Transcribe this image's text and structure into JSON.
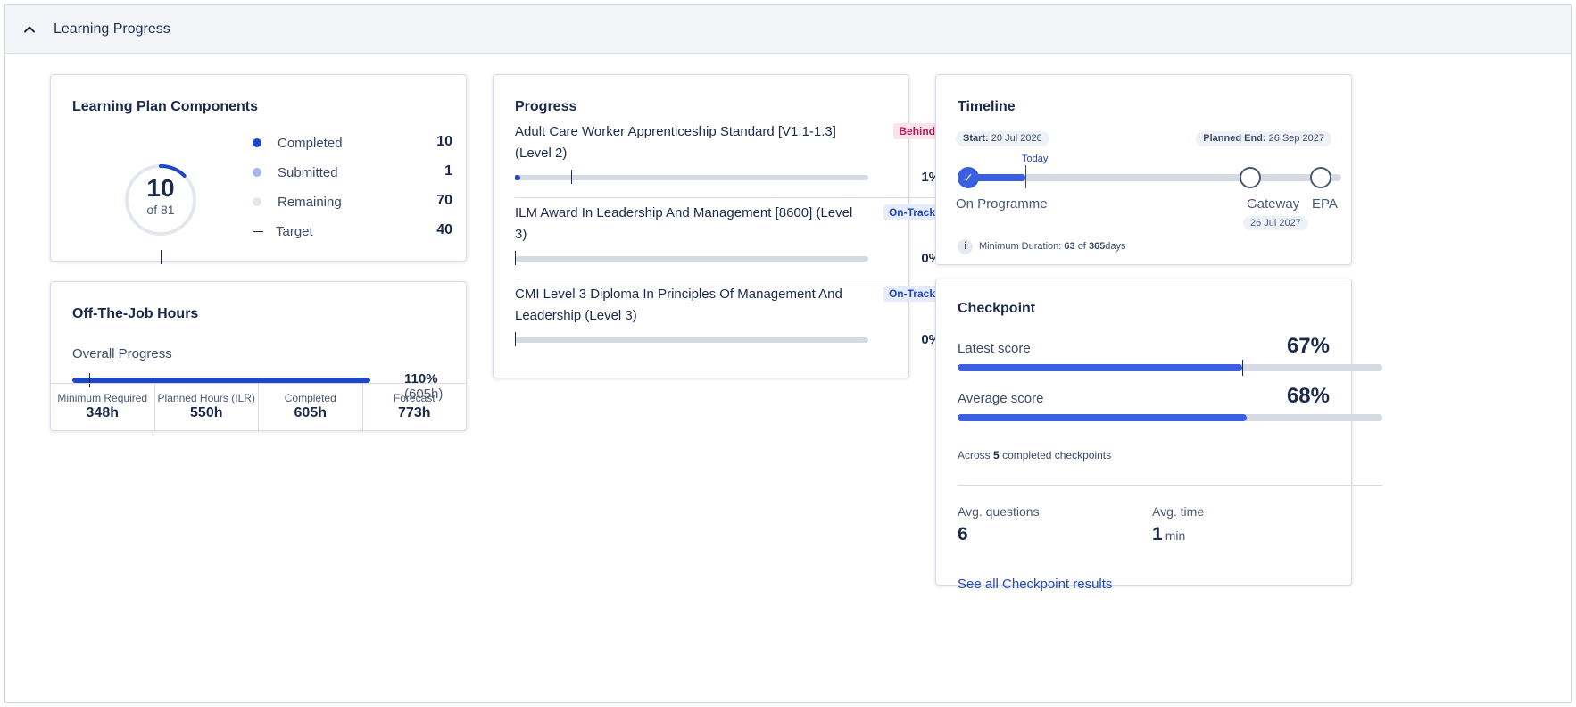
{
  "section": {
    "title": "Learning Progress"
  },
  "learning_plan": {
    "title": "Learning Plan Components",
    "completed": "10",
    "total_label": "of 81",
    "completed_fraction": 0.1235,
    "target_fraction": 0.4938,
    "legend": [
      {
        "label": "Completed",
        "value": "10",
        "color": "#1f45c8"
      },
      {
        "label": "Submitted",
        "value": "1",
        "color": "#a9b7e8"
      },
      {
        "label": "Remaining",
        "value": "70",
        "color": "#e4e7ee"
      },
      {
        "label": "Target",
        "value": "40"
      }
    ]
  },
  "otj": {
    "title": "Off-The-Job Hours",
    "progress_label": "Overall Progress",
    "percent": "110%",
    "hours": "(605h)",
    "fill_fraction": 1.0,
    "stats": [
      {
        "label": "Minimum Required",
        "value": "348h"
      },
      {
        "label": "Planned Hours (ILR)",
        "value": "550h"
      },
      {
        "label": "Completed",
        "value": "605h"
      },
      {
        "label": "Forecast",
        "value": "773h"
      }
    ]
  },
  "progress": {
    "title": "Progress",
    "items": [
      {
        "name": "Adult Care Worker Apprenticeship Standard [V1.1-1.3] (Level 2)",
        "badge": "Behind",
        "badge_type": "behind",
        "percent": "1%",
        "fill_fraction": 0.01,
        "target_fraction": 0.16
      },
      {
        "name": "ILM Award In Leadership And Management [8600] (Level 3)",
        "badge": "On-Track",
        "badge_type": "ontrack",
        "percent": "0%",
        "fill_fraction": 0.0,
        "target_fraction": 0.0
      },
      {
        "name": "CMI Level 3 Diploma In Principles Of Management And Leadership (Level 3)",
        "badge": "On-Track",
        "badge_type": "ontrack",
        "percent": "0%",
        "fill_fraction": 0.0,
        "target_fraction": 0.0
      }
    ]
  },
  "timeline": {
    "title": "Timeline",
    "start_label": "Start:",
    "start_date": "20 Jul 2026",
    "end_label": "Planned End:",
    "end_date": "26 Sep 2027",
    "today_label": "Today",
    "milestones": [
      {
        "label": "On Programme"
      },
      {
        "label": "Gateway",
        "date": "26 Jul 2027"
      },
      {
        "label": "EPA"
      }
    ],
    "info_icon": "i",
    "min_duration_label": "Minimum Duration:",
    "min_duration_value": "63",
    "min_duration_of": "of",
    "min_duration_total": "365",
    "min_duration_unit": "days"
  },
  "checkpoint": {
    "title": "Checkpoint",
    "latest_label": "Latest score",
    "latest_value": "67%",
    "latest_fraction": 0.67,
    "average_label": "Average score",
    "average_value": "68%",
    "average_fraction": 0.68,
    "across_prefix": "Across",
    "across_count": "5",
    "across_suffix": "completed checkpoints",
    "avg_questions_label": "Avg. questions",
    "avg_questions_value": "6",
    "avg_time_label": "Avg. time",
    "avg_time_value": "1",
    "avg_time_unit": "min",
    "link_label": "See all Checkpoint results"
  }
}
